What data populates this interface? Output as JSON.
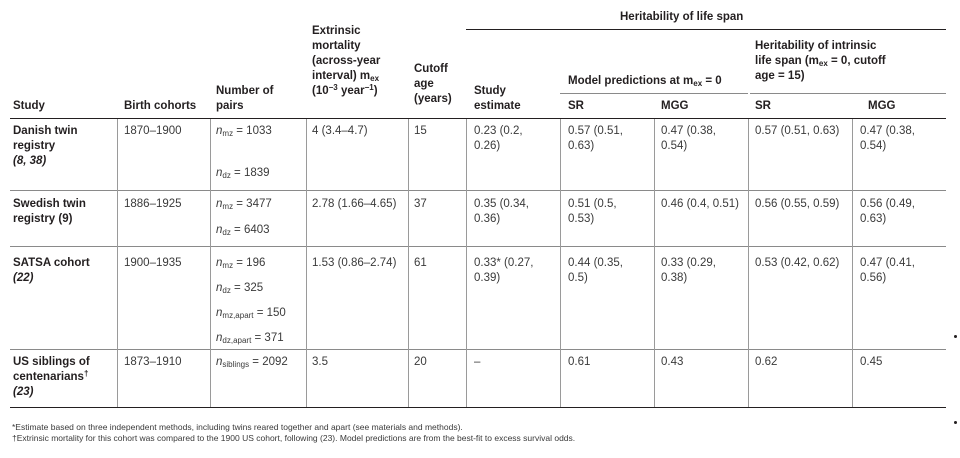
{
  "header": {
    "heritability": "Heritability of life span",
    "extrinsic_lines": [
      "Extrinsic",
      "mortality",
      "(across-year",
      "interval) m",
      "(10",
      " year",
      ")"
    ],
    "extrinsic_sub": "ex",
    "extrinsic_exp_a": "−3",
    "extrinsic_exp_b": "−1",
    "cutoff_lines": [
      "Cutoff",
      "age",
      "(years)"
    ],
    "pairs_lines": [
      "Number of",
      "pairs"
    ],
    "study": "Study",
    "birth": "Birth cohorts",
    "study_est_lines": [
      "Study",
      "estimate"
    ],
    "model_pred": "Model predictions at m",
    "model_pred_sub": "ex",
    "model_pred_tail": " = 0",
    "intrinsic_lines": [
      "Heritability of intrinsic",
      "life span (m",
      "ex",
      " = 0, cutoff",
      "age = 15)"
    ],
    "sr": "SR",
    "mgg": "MGG"
  },
  "rows": [
    {
      "study": [
        "Danish twin",
        "registry",
        "(8, 38)"
      ],
      "birth": "1870–1900",
      "pairs": [
        [
          "n",
          "mz",
          " = 1033"
        ],
        [
          "n",
          "dz",
          " = 1839"
        ]
      ],
      "mex": "4 (3.4–4.7)",
      "cutoff": "15",
      "estimate": [
        "0.23 (0.2,",
        "0.26)"
      ],
      "sr": [
        "0.57 (0.51,",
        "0.63)"
      ],
      "mgg": [
        "0.47 (0.38,",
        "0.54)"
      ],
      "isr": [
        "0.57 (0.51, 0.63)"
      ],
      "imgg": [
        "0.47 (0.38,",
        "0.54)"
      ]
    },
    {
      "study": [
        "Swedish twin",
        "registry (9)"
      ],
      "birth": "1886–1925",
      "pairs": [
        [
          "n",
          "mz",
          " =  3477"
        ],
        [
          "n",
          "dz",
          " = 6403"
        ]
      ],
      "mex": "2.78 (1.66–4.65)",
      "cutoff": "37",
      "estimate": [
        "0.35 (0.34,",
        "0.36)"
      ],
      "sr": [
        "0.51 (0.5,",
        "0.53)"
      ],
      "mgg": [
        "0.46 (0.4, 0.51)"
      ],
      "isr": [
        "0.56 (0.55, 0.59)"
      ],
      "imgg": [
        "0.56 (0.49,",
        "0.63)"
      ]
    },
    {
      "study": [
        "SATSA cohort",
        "(22)"
      ],
      "birth": "1900–1935",
      "pairs": [
        [
          "n",
          "mz",
          " = 196"
        ],
        [
          "n",
          "dz",
          " = 325"
        ],
        [
          "n",
          "mz,apart",
          " = 150"
        ],
        [
          "n",
          "dz,apart",
          " = 371"
        ]
      ],
      "mex": "1.53 (0.86–2.74)",
      "cutoff": "61",
      "estimate": [
        "0.33* (0.27,",
        "0.39)"
      ],
      "sr": [
        "0.44 (0.35,",
        "0.5)"
      ],
      "mgg": [
        "0.33 (0.29,",
        "0.38)"
      ],
      "isr": [
        "0.53 (0.42, 0.62)"
      ],
      "imgg": [
        "0.47 (0.41,",
        "0.56)"
      ]
    },
    {
      "study": [
        "US siblings of",
        "centenarians",
        "†",
        "(23)"
      ],
      "birth": "1873–1910",
      "pairs": [
        [
          "n",
          "siblings",
          " = 2092"
        ]
      ],
      "mex": "3.5",
      "cutoff": "20",
      "estimate": [
        "–"
      ],
      "sr": [
        "0.61"
      ],
      "mgg": [
        "0.43"
      ],
      "isr": [
        "0.62"
      ],
      "imgg": [
        "0.45"
      ]
    }
  ],
  "footnotes": [
    "*Estimate based on three independent methods, including twins reared together and apart (see materials and methods).",
    "†Extrinsic mortality for this cohort was compared to the 1900 US cohort, following (23). Model predictions are from the best-fit to excess survival odds."
  ]
}
